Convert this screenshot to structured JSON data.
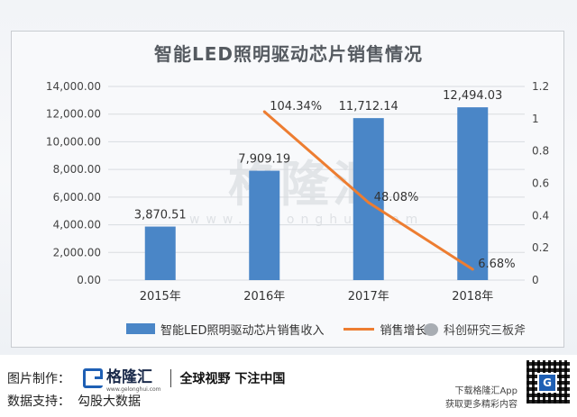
{
  "chart_data": {
    "type": "bar",
    "title": "智能LED照明驱动芯片销售情况",
    "categories": [
      "2015年",
      "2016年",
      "2017年",
      "2018年"
    ],
    "series": [
      {
        "name": "智能LED照明驱动芯片销售收入",
        "type": "bar",
        "axis": "left",
        "values": [
          3870.51,
          7909.19,
          11712.14,
          12494.03
        ],
        "labels": [
          "3,870.51",
          "7,909.19",
          "11,712.14",
          "12,494.03"
        ]
      },
      {
        "name": "销售增长",
        "type": "line",
        "axis": "right",
        "values": [
          null,
          1.0434,
          0.4808,
          0.0668
        ],
        "labels": [
          "",
          "104.34%",
          "48.08%",
          "6.68%"
        ]
      }
    ],
    "y_left": {
      "min": 0,
      "max": 14000,
      "ticks": [
        "0.00",
        "2,000.00",
        "4,000.00",
        "6,000.00",
        "8,000.00",
        "10,000.00",
        "12,000.00",
        "14,000.00"
      ]
    },
    "y_right": {
      "min": 0,
      "max": 1.2,
      "ticks": [
        "0",
        "0.2",
        "0.4",
        "0.6",
        "0.8",
        "1",
        "1.2"
      ]
    },
    "grid": true,
    "legend": "bottom",
    "colors": {
      "bar": "#4a86c7",
      "line": "#ed7d31",
      "grid": "#d9dce0"
    }
  },
  "watermark": {
    "main": "格隆汇",
    "sub": "www.gelonghui.com"
  },
  "wechat_tag": "科创研究三板斧",
  "footer": {
    "made_by_label": "图片制作：",
    "logo_text": "格隆汇",
    "logo_sub": "www.gelonghui.com",
    "slogan": "全球视野 下注中国",
    "data_support_label": "数据支持：",
    "data_support_value": "勾股大数据",
    "download_line1": "下载格隆汇App",
    "download_line2": "获取更多精彩内容",
    "qr_letter": "G"
  }
}
